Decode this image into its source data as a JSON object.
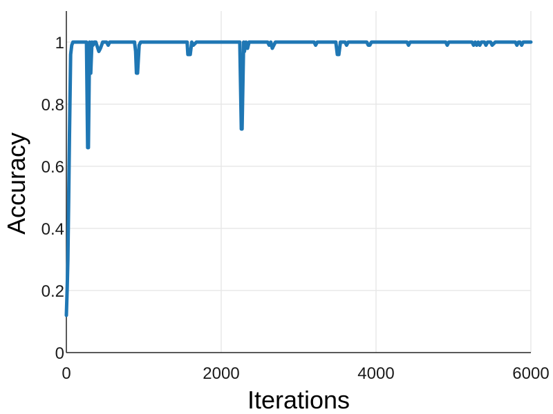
{
  "chart_data": {
    "type": "line",
    "title": "",
    "xlabel": "Iterations",
    "ylabel": "Accuracy",
    "xlim": [
      0,
      6000
    ],
    "ylim": [
      0,
      1.1
    ],
    "xticks": [
      0,
      2000,
      4000,
      6000
    ],
    "xtick_labels": [
      "0",
      "2000",
      "4000",
      "6000"
    ],
    "yticks": [
      0,
      0.2,
      0.4,
      0.6,
      0.8,
      1
    ],
    "ytick_labels": [
      "0",
      "0.2",
      "0.4",
      "0.6",
      "0.8",
      "1"
    ],
    "grid": true,
    "legend": "none",
    "series": [
      {
        "name": "Accuracy",
        "color": "#1f77b4",
        "x": [
          0,
          10,
          20,
          30,
          40,
          55,
          70,
          85,
          100,
          120,
          150,
          200,
          260,
          275,
          285,
          300,
          315,
          330,
          345,
          360,
          380,
          420,
          440,
          470,
          520,
          540,
          560,
          600,
          880,
          895,
          905,
          920,
          940,
          960,
          1000,
          1560,
          1570,
          1600,
          1620,
          1640,
          1680,
          2240,
          2260,
          2270,
          2290,
          2300,
          2320,
          2340,
          2360,
          2380,
          2600,
          2620,
          2640,
          2660,
          2700,
          2720,
          3200,
          3220,
          3240,
          3480,
          3500,
          3520,
          3540,
          3600,
          3620,
          3640,
          3880,
          3900,
          3920,
          3940,
          4400,
          4420,
          4440,
          4900,
          4920,
          4940,
          5240,
          5260,
          5280,
          5300,
          5320,
          5340,
          5360,
          5400,
          5420,
          5440,
          5480,
          5500,
          5540,
          5560,
          5800,
          5820,
          5840,
          5860,
          5880,
          5900,
          5920,
          6000
        ],
        "y": [
          0.12,
          0.2,
          0.3,
          0.5,
          0.7,
          0.96,
          0.99,
          1,
          1,
          1,
          1,
          1,
          1,
          0.66,
          0.66,
          1,
          0.9,
          1,
          0.99,
          1,
          1,
          0.97,
          0.98,
          1,
          1,
          0.99,
          1,
          1,
          1,
          0.97,
          0.9,
          0.9,
          0.99,
          1,
          1,
          1,
          0.96,
          0.96,
          1,
          0.99,
          1,
          1,
          0.72,
          0.72,
          1,
          0.97,
          1,
          0.98,
          1,
          1,
          1,
          0.99,
          1,
          0.98,
          1,
          1,
          1,
          0.99,
          1,
          1,
          0.96,
          0.96,
          1,
          1,
          0.99,
          1,
          1,
          0.99,
          0.99,
          1,
          1,
          0.99,
          1,
          1,
          0.99,
          1,
          1,
          0.99,
          1,
          0.99,
          1,
          0.99,
          1,
          1,
          0.99,
          1,
          1,
          0.99,
          1,
          1,
          1,
          0.99,
          1,
          1,
          0.99,
          1,
          1,
          1
        ]
      }
    ]
  }
}
